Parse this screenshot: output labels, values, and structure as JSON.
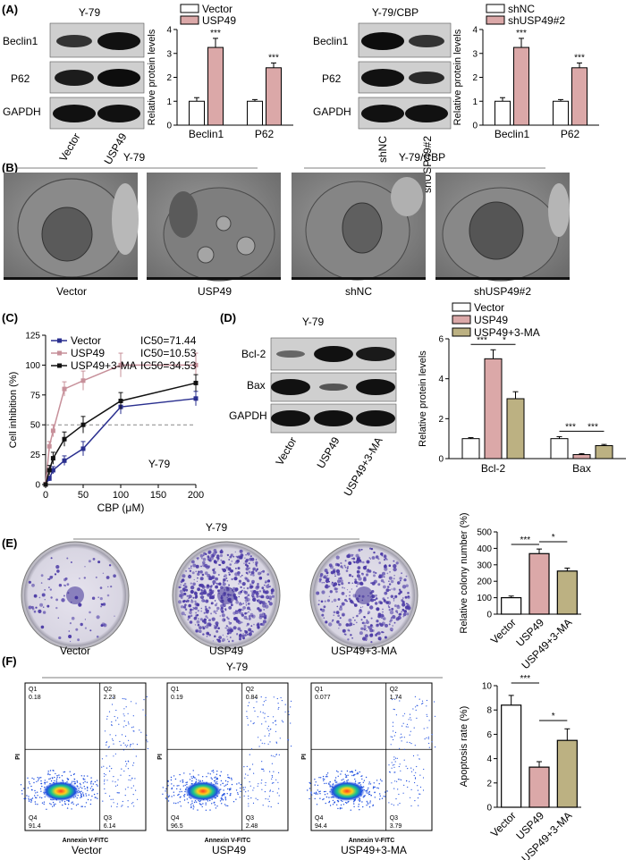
{
  "panels": {
    "A": "(A)",
    "B": "(B)",
    "C": "(C)",
    "D": "(D)",
    "E": "(E)",
    "F": "(F)"
  },
  "colors": {
    "vector": "#ffffff",
    "usp49": "#dba8a8",
    "ma": "#bcb182",
    "blot_dark": "#1a1a1a",
    "blot_bg": "#d4d4d4"
  },
  "A_left": {
    "cell_line": "Y-79",
    "blot_labels": [
      "Beclin1",
      "P62",
      "GAPDH"
    ],
    "lanes": [
      "Vector",
      "USP49"
    ],
    "legend": [
      "Vector",
      "USP49"
    ]
  },
  "A_right": {
    "cell_line": "Y-79/CBP",
    "blot_labels": [
      "Beclin1",
      "P62",
      "GAPDH"
    ],
    "lanes": [
      "shNC",
      "shUSP49#2"
    ],
    "legend": [
      "shNC",
      "shUSP49#2"
    ]
  },
  "B": {
    "groups": [
      "Y-79",
      "Y-79/CBP"
    ],
    "captions": [
      "Vector",
      "USP49",
      "shNC",
      "shUSP49#2"
    ]
  },
  "D": {
    "cell_line": "Y-79",
    "blot_labels": [
      "Bcl-2",
      "Bax",
      "GAPDH"
    ],
    "lanes": [
      "Vector",
      "USP49",
      "USP49+3-MA"
    ],
    "legend": [
      "Vector",
      "USP49",
      "USP49+3-MA"
    ]
  },
  "E": {
    "cell_line": "Y-79",
    "captions": [
      "Vector",
      "USP49",
      "USP49+3-MA"
    ]
  },
  "F": {
    "cell_line": "Y-79",
    "captions": [
      "Vector",
      "USP49",
      "USP49+3-MA"
    ],
    "xaxis": "Annexin V-FITC",
    "yaxis": "PI",
    "quadrant_labels": [
      "Q1",
      "Q2",
      "Q3",
      "Q4"
    ],
    "plots": [
      {
        "q1": "0.18",
        "q2": "2.23",
        "q3": "6.14",
        "q4": "91.4"
      },
      {
        "q1": "0.19",
        "q2": "0.84",
        "q3": "2.48",
        "q4": "96.5"
      },
      {
        "q1": "0.077",
        "q2": "1.74",
        "q3": "3.79",
        "q4": "94.4"
      }
    ]
  },
  "chart_data": [
    {
      "type": "bar",
      "id": "A_left_bar",
      "categories": [
        "Beclin1",
        "P62"
      ],
      "series": [
        {
          "name": "Vector",
          "values": [
            1.0,
            1.0
          ],
          "err": [
            0.15,
            0.07
          ]
        },
        {
          "name": "USP49",
          "values": [
            3.25,
            2.4
          ],
          "err": [
            0.38,
            0.2
          ]
        }
      ],
      "sig": [
        "***",
        "***"
      ],
      "ylabel": "Relative protein levels",
      "ylim": [
        0,
        4
      ],
      "yticks": [
        0,
        1,
        2,
        3,
        4
      ],
      "legend": "top"
    },
    {
      "type": "bar",
      "id": "A_right_bar",
      "categories": [
        "Beclin1",
        "P62"
      ],
      "series": [
        {
          "name": "shNC",
          "values": [
            1.0,
            1.0
          ],
          "err": [
            0.15,
            0.07
          ]
        },
        {
          "name": "shUSP49#2",
          "values": [
            3.25,
            2.4
          ],
          "err": [
            0.38,
            0.2
          ]
        }
      ],
      "sig": [
        "***",
        "***"
      ],
      "ylabel": "Relative protein levels",
      "ylim": [
        0,
        4
      ],
      "yticks": [
        0,
        1,
        2,
        3,
        4
      ],
      "legend": "top"
    },
    {
      "type": "line",
      "id": "C_line",
      "xlabel": "CBP (μM)",
      "ylabel": "Cell inhibition (%)",
      "xlim": [
        0,
        200
      ],
      "ylim": [
        0,
        125
      ],
      "xticks": [
        0,
        50,
        100,
        150,
        200
      ],
      "yticks": [
        0,
        25,
        50,
        75,
        100,
        125
      ],
      "annotation": "Y-79",
      "ref_line": 50,
      "series": [
        {
          "name": "Vector",
          "ic50": "IC50=71.44",
          "color": "#2a2f8f",
          "x": [
            0,
            5,
            10,
            25,
            50,
            100,
            200
          ],
          "y": [
            0,
            5,
            12,
            20,
            30,
            65,
            72
          ],
          "err": [
            1,
            2,
            3,
            4,
            6,
            6,
            6
          ]
        },
        {
          "name": "USP49",
          "ic50": "IC50=10.53",
          "color": "#c7909a",
          "x": [
            0,
            5,
            10,
            25,
            50,
            100,
            200
          ],
          "y": [
            0,
            32,
            45,
            80,
            87,
            100,
            100
          ],
          "err": [
            2,
            4,
            5,
            6,
            8,
            10,
            10
          ]
        },
        {
          "name": "USP49+3-MA",
          "ic50": "IC50=34.53",
          "color": "#111111",
          "x": [
            0,
            5,
            10,
            25,
            50,
            100,
            200
          ],
          "y": [
            0,
            12,
            22,
            38,
            50,
            70,
            85
          ],
          "err": [
            1,
            4,
            5,
            6,
            7,
            7,
            7
          ]
        }
      ],
      "legend": "top-left"
    },
    {
      "type": "bar",
      "id": "D_bar",
      "categories": [
        "Bcl-2",
        "Bax"
      ],
      "series": [
        {
          "name": "Vector",
          "values": [
            1.0,
            1.0
          ],
          "err": [
            0.05,
            0.1
          ]
        },
        {
          "name": "USP49",
          "values": [
            5.0,
            0.2
          ],
          "err": [
            0.45,
            0.05
          ]
        },
        {
          "name": "USP49+3-MA",
          "values": [
            3.0,
            0.65
          ],
          "err": [
            0.35,
            0.06
          ]
        }
      ],
      "sig": [
        [
          "***",
          "*"
        ],
        [
          "***",
          "***"
        ]
      ],
      "ylabel": "Relative protein levels",
      "ylim": [
        0,
        6
      ],
      "yticks": [
        0,
        2,
        4,
        6
      ],
      "legend": "top"
    },
    {
      "type": "bar",
      "id": "E_bar",
      "categories": [
        "Vector",
        "USP49",
        "USP49+3-MA"
      ],
      "values": [
        100,
        368,
        262
      ],
      "err": [
        10,
        28,
        18
      ],
      "sig": [
        "***",
        "*"
      ],
      "ylabel": "Relative colony number (%)",
      "ylim": [
        0,
        500
      ],
      "yticks": [
        0,
        100,
        200,
        300,
        400,
        500
      ]
    },
    {
      "type": "bar",
      "id": "F_bar",
      "categories": [
        "Vector",
        "USP49",
        "USP49+3-MA"
      ],
      "values": [
        8.4,
        3.3,
        5.5
      ],
      "err": [
        0.8,
        0.45,
        0.95
      ],
      "sig": [
        "***",
        "*"
      ],
      "ylabel": "Apoptosis rate (%)",
      "ylim": [
        0,
        10
      ],
      "yticks": [
        0,
        2,
        4,
        6,
        8,
        10
      ]
    }
  ]
}
